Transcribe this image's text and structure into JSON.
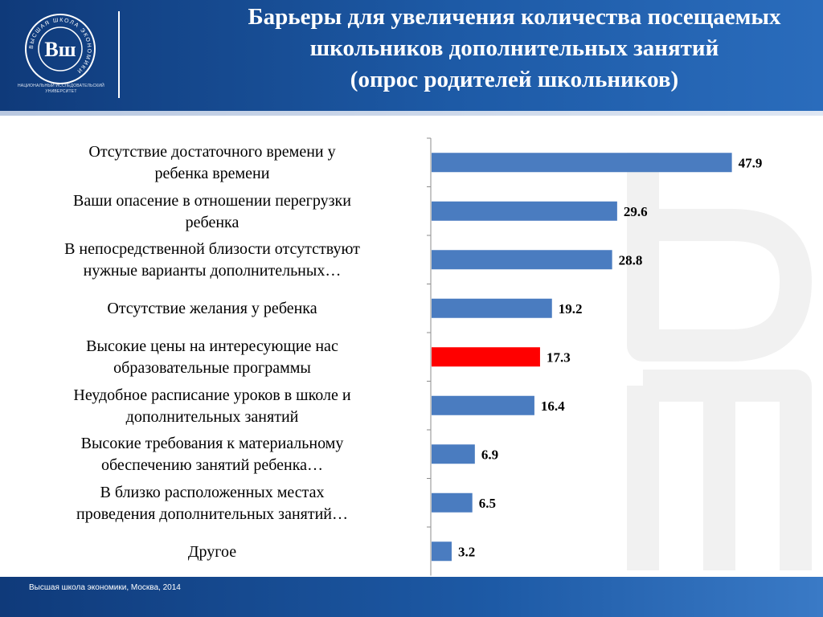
{
  "header": {
    "title_lines": [
      "Барьеры для увеличения количества посещаемых",
      "школьников  дополнительных занятий",
      "(опрос  родителей школьников)"
    ],
    "logo_caption": "НАЦИОНАЛЬНЫЙ ИССЛЕДОВАТЕЛЬСКИЙ УНИВЕРСИТЕТ",
    "logo_ring_text": "ВЫСШАЯ ШКОЛА ЭКОНОМИКИ",
    "logo_monogram": "Вш"
  },
  "footer": {
    "text": "Высшая школа экономики, Москва, 2014"
  },
  "colors": {
    "header_blue": "#1d5aa6",
    "bar_blue": "#4a7cc0",
    "bar_highlight": "#ff0000",
    "axis": "#8c8c8c"
  },
  "chart_data": {
    "type": "bar",
    "orientation": "horizontal",
    "categories": [
      "Отсутствие достаточного времени у ребенка времени",
      "Ваши опасение в отношении перегрузки ребенка",
      "В непосредственной близости отсутствуют нужные варианты дополнительных…",
      "Отсутствие желания у ребенка",
      "Высокие цены на интересующие нас образовательные программы",
      "Неудобное расписание уроков в школе и дополнительных занятий",
      "Высокие требования к материальному обеспечению занятий ребенка…",
      "В близко расположенных местах проведения дополнительных занятий…",
      "Другое"
    ],
    "category_label_lines": [
      [
        "Отсутствие достаточного времени у",
        "ребенка времени"
      ],
      [
        "Ваши опасение в отношении перегрузки",
        "ребенка"
      ],
      [
        "В непосредственной близости отсутствуют",
        "нужные варианты дополнительных…"
      ],
      [
        "Отсутствие желания у ребенка"
      ],
      [
        "Высокие цены на интересующие нас",
        "образовательные программы"
      ],
      [
        "Неудобное расписание уроков в школе и",
        "дополнительных занятий"
      ],
      [
        "Высокие требования к материальному",
        "обеспечению занятий ребенка…"
      ],
      [
        "В близко расположенных местах",
        "проведения дополнительных занятий…"
      ],
      [
        "Другое"
      ]
    ],
    "values": [
      47.9,
      29.6,
      28.8,
      19.2,
      17.3,
      16.4,
      6.9,
      6.5,
      3.2
    ],
    "value_labels": [
      "47.9",
      "29.6",
      "28.8",
      "19.2",
      "17.3",
      "16.4",
      "6.9",
      "6.5",
      "3.2"
    ],
    "highlight_index": 4,
    "xlim": [
      0,
      60
    ],
    "grid": false,
    "legend": "none"
  }
}
